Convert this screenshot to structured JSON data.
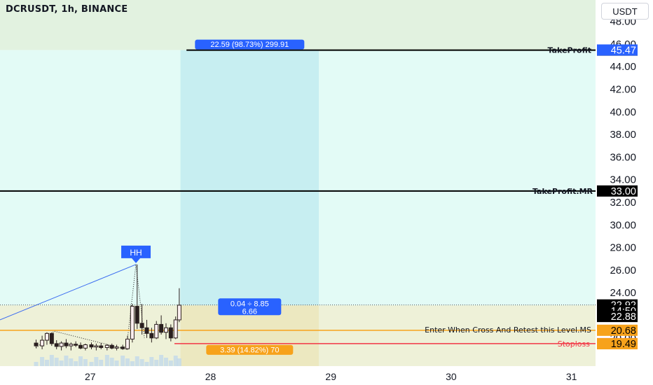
{
  "header": {
    "title": "DCRUSDT, 1h, BINANCE",
    "currency_button": "USDT"
  },
  "chart_data": {
    "type": "candlestick",
    "symbol": "DCRUSDT",
    "interval": "1h",
    "exchange": "BINANCE",
    "currency": "USDT",
    "ylim": [
      18.9,
      48.6
    ],
    "xlim": [
      26.25,
      31.2
    ],
    "y_ticks": [
      20.0,
      22.0,
      24.0,
      26.0,
      28.0,
      30.0,
      32.0,
      34.0,
      36.0,
      38.0,
      40.0,
      42.0,
      44.0,
      46.0,
      48.0
    ],
    "x_ticks": [
      {
        "label": "27",
        "x": 27.0
      },
      {
        "label": "28",
        "x": 28.0
      },
      {
        "label": "29",
        "x": 29.0
      },
      {
        "label": "30",
        "x": 30.0
      },
      {
        "label": "31",
        "x": 31.0
      }
    ],
    "levels": [
      {
        "name": "TakeProfit",
        "price": 45.46,
        "label": "TakeProfit",
        "price_label": "45.46",
        "color": "#000000"
      },
      {
        "name": "TakeProfit.MR",
        "price": 33.0,
        "label": "TakeProfit.MR",
        "price_label": "33.00",
        "color": "#000000"
      },
      {
        "name": "Entry",
        "price": 20.68,
        "label": "Enter When Cross And Retest this Level.MS",
        "price_label": "20.68",
        "color": "#f7a21b"
      },
      {
        "name": "Stoploss",
        "price": 19.5,
        "label": "Stoploss",
        "price_label": "19.50",
        "color": "#f23645"
      }
    ],
    "price_labels": [
      {
        "text": "45.47",
        "price": 45.47,
        "bg": "#2962ff",
        "fg": "#ffffff"
      },
      {
        "text": "22.92",
        "price": 22.92,
        "bg": "#000000",
        "fg": "#ffffff"
      },
      {
        "text": "14:50",
        "price": 22.4,
        "bg": "#000000",
        "fg": "#ffffff"
      },
      {
        "text": "22.88",
        "price": 21.9,
        "bg": "#000000",
        "fg": "#ffffff"
      },
      {
        "text": "19.49",
        "price": 19.49,
        "bg": "#f7a21b",
        "fg": "#000000"
      }
    ],
    "position_tool": {
      "x_start": 27.75,
      "x_end": 28.9,
      "entry": 22.88,
      "target": 45.46,
      "stop": 19.49,
      "target_label": "22.59 (98.73%) 299.91",
      "mid_label_line1": "0.04 ÷ 8.85",
      "mid_label_line2": "6.66",
      "stop_label": "3.39 (14.82%) 70"
    },
    "hh_label": {
      "text": "HH",
      "x": 27.38,
      "price": 26.5
    },
    "trendline": {
      "from": [
        26.25,
        21.6
      ],
      "to": [
        27.38,
        26.5
      ]
    },
    "current_price": 22.92,
    "candles": [
      {
        "x": 26.55,
        "o": 19.55,
        "h": 19.85,
        "l": 19.1,
        "c": 19.3
      },
      {
        "x": 26.6,
        "o": 19.3,
        "h": 20.2,
        "l": 19.0,
        "c": 19.8
      },
      {
        "x": 26.64,
        "o": 19.8,
        "h": 20.5,
        "l": 19.4,
        "c": 20.4
      },
      {
        "x": 26.68,
        "o": 20.4,
        "h": 20.5,
        "l": 19.3,
        "c": 19.5
      },
      {
        "x": 26.72,
        "o": 19.5,
        "h": 19.8,
        "l": 19.0,
        "c": 19.25
      },
      {
        "x": 26.76,
        "o": 19.25,
        "h": 19.7,
        "l": 18.9,
        "c": 19.55
      },
      {
        "x": 26.8,
        "o": 19.55,
        "h": 19.9,
        "l": 19.1,
        "c": 19.3
      },
      {
        "x": 26.84,
        "o": 19.3,
        "h": 19.6,
        "l": 18.9,
        "c": 19.45
      },
      {
        "x": 26.88,
        "o": 19.45,
        "h": 19.7,
        "l": 19.2,
        "c": 19.35
      },
      {
        "x": 26.92,
        "o": 19.35,
        "h": 19.6,
        "l": 19.0,
        "c": 19.1
      },
      {
        "x": 26.96,
        "o": 19.1,
        "h": 19.5,
        "l": 18.9,
        "c": 19.4
      },
      {
        "x": 27.01,
        "o": 19.4,
        "h": 19.6,
        "l": 19.0,
        "c": 19.2
      },
      {
        "x": 27.05,
        "o": 19.2,
        "h": 19.5,
        "l": 18.9,
        "c": 19.3
      },
      {
        "x": 27.09,
        "o": 19.3,
        "h": 19.55,
        "l": 19.0,
        "c": 19.15
      },
      {
        "x": 27.14,
        "o": 19.15,
        "h": 19.45,
        "l": 18.9,
        "c": 19.35
      },
      {
        "x": 27.18,
        "o": 19.35,
        "h": 19.5,
        "l": 19.0,
        "c": 19.1
      },
      {
        "x": 27.22,
        "o": 19.1,
        "h": 19.4,
        "l": 18.9,
        "c": 19.2
      },
      {
        "x": 27.27,
        "o": 19.2,
        "h": 19.4,
        "l": 18.95,
        "c": 19.05
      },
      {
        "x": 27.31,
        "o": 19.05,
        "h": 20.2,
        "l": 18.95,
        "c": 19.9
      },
      {
        "x": 27.35,
        "o": 19.9,
        "h": 23.0,
        "l": 19.6,
        "c": 22.8
      },
      {
        "x": 27.39,
        "o": 22.8,
        "h": 26.5,
        "l": 20.8,
        "c": 21.3
      },
      {
        "x": 27.43,
        "o": 21.3,
        "h": 23.0,
        "l": 20.3,
        "c": 20.9
      },
      {
        "x": 27.47,
        "o": 20.9,
        "h": 21.6,
        "l": 20.0,
        "c": 20.4
      },
      {
        "x": 27.51,
        "o": 20.4,
        "h": 20.9,
        "l": 19.6,
        "c": 20.0
      },
      {
        "x": 27.55,
        "o": 20.0,
        "h": 21.5,
        "l": 19.9,
        "c": 21.2
      },
      {
        "x": 27.59,
        "o": 21.2,
        "h": 22.0,
        "l": 20.3,
        "c": 20.5
      },
      {
        "x": 27.63,
        "o": 20.5,
        "h": 21.3,
        "l": 19.9,
        "c": 20.9
      },
      {
        "x": 27.67,
        "o": 20.9,
        "h": 21.2,
        "l": 19.7,
        "c": 20.0
      },
      {
        "x": 27.71,
        "o": 20.0,
        "h": 21.9,
        "l": 19.9,
        "c": 21.6
      },
      {
        "x": 27.74,
        "o": 21.6,
        "h": 24.4,
        "l": 21.4,
        "c": 22.9
      }
    ]
  }
}
